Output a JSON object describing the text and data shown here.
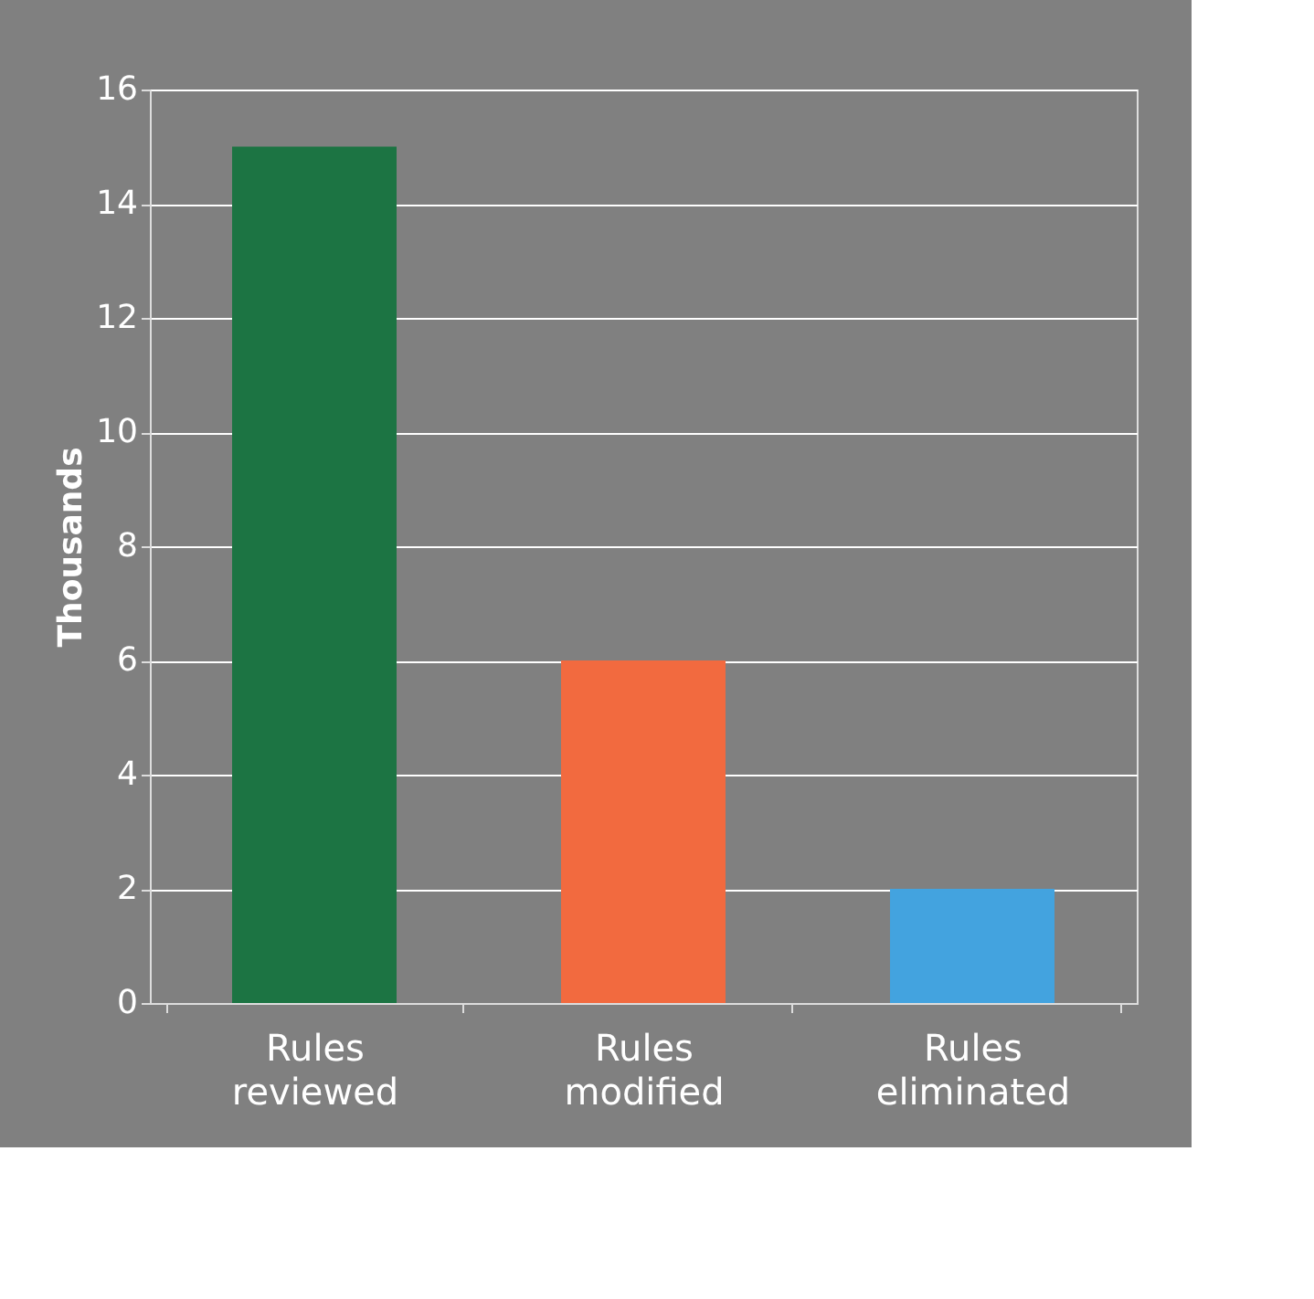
{
  "chart_data": {
    "type": "bar",
    "ylabel": "Thousands",
    "categories": [
      "Rules reviewed",
      "Rules modified",
      "Rules eliminated"
    ],
    "values": [
      15,
      6,
      2
    ],
    "colors": [
      "#1c7443",
      "#f26a3f",
      "#43a3df"
    ],
    "ylim": [
      0,
      16
    ],
    "yticks": [
      0,
      2,
      4,
      6,
      8,
      10,
      12,
      14,
      16
    ],
    "grid": "y"
  }
}
